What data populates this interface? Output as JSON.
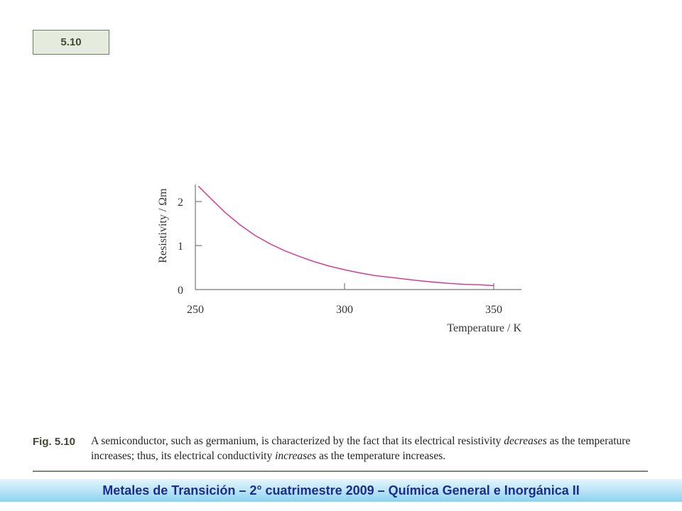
{
  "figure_badge": "5.10",
  "chart_data": {
    "type": "line",
    "xlabel": "Temperature / K",
    "ylabel": "Resistivity / Ωm",
    "xlim": [
      250,
      360
    ],
    "ylim": [
      0,
      2.5
    ],
    "x_ticks": [
      "250",
      "300",
      "350"
    ],
    "y_ticks": [
      "0",
      "1",
      "2"
    ],
    "grid": false,
    "series": [
      {
        "color": "#d62f8f",
        "x": [
          251,
          255,
          260,
          265,
          270,
          275,
          280,
          285,
          290,
          295,
          300,
          305,
          310,
          315,
          320,
          325,
          330,
          335,
          340,
          345,
          350
        ],
        "y": [
          2.35,
          2.08,
          1.75,
          1.47,
          1.23,
          1.04,
          0.88,
          0.75,
          0.63,
          0.53,
          0.45,
          0.38,
          0.32,
          0.28,
          0.24,
          0.2,
          0.17,
          0.14,
          0.12,
          0.11,
          0.09
        ]
      }
    ]
  },
  "caption": {
    "label": "Fig. 5.10",
    "text_part1": "A semiconductor, such as germanium, is characterized by the fact that its electrical resistivity ",
    "emphasis1": "decreases",
    "text_part2": " as the temperature increases; thus, its electrical conductivity ",
    "emphasis2": "increases",
    "text_part3": " as the temperature increases."
  },
  "footer": "Metales de Transición – 2° cuatrimestre 2009 – Química General e Inorgánica II"
}
